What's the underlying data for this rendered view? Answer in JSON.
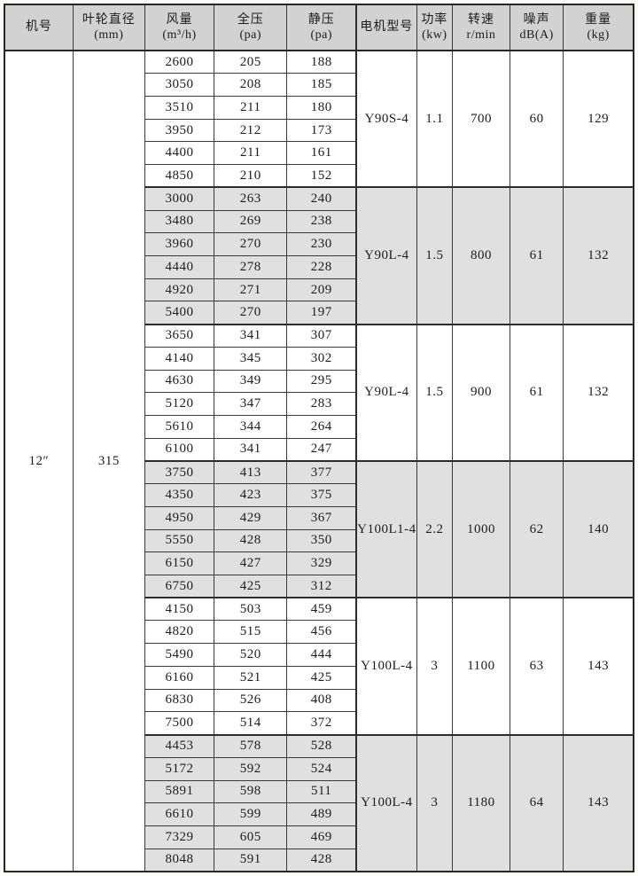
{
  "colors": {
    "header_bg": "#d2d2d2",
    "shaded_block_bg": "#e0e0e0",
    "border": "#2c2c2c",
    "page_bg": "#fbfbf9"
  },
  "table": {
    "headers": [
      {
        "line1": "机号",
        "line2": ""
      },
      {
        "line1": "叶轮直径",
        "line2": "(mm)"
      },
      {
        "line1": "风量",
        "line2": "(m³/h)"
      },
      {
        "line1": "全压",
        "line2": "(pa)"
      },
      {
        "line1": "静压",
        "line2": "(pa)"
      },
      {
        "line1": "电机型号",
        "line2": ""
      },
      {
        "line1": "功率",
        "line2": "(kw)"
      },
      {
        "line1": "转速",
        "line2": "r/min"
      },
      {
        "line1": "噪声",
        "line2": "dB(A)"
      },
      {
        "line1": "重量",
        "line2": "(kg)"
      }
    ],
    "machine_no": "12″",
    "impeller_diameter": "315",
    "blocks": [
      {
        "shaded": false,
        "rows": [
          [
            "2600",
            "205",
            "188"
          ],
          [
            "3050",
            "208",
            "185"
          ],
          [
            "3510",
            "211",
            "180"
          ],
          [
            "3950",
            "212",
            "173"
          ],
          [
            "4400",
            "211",
            "161"
          ],
          [
            "4850",
            "210",
            "152"
          ]
        ],
        "motor_model": "Y90S-4",
        "power": "1.1",
        "speed": "700",
        "noise": "60",
        "weight": "129"
      },
      {
        "shaded": true,
        "rows": [
          [
            "3000",
            "263",
            "240"
          ],
          [
            "3480",
            "269",
            "238"
          ],
          [
            "3960",
            "270",
            "230"
          ],
          [
            "4440",
            "278",
            "228"
          ],
          [
            "4920",
            "271",
            "209"
          ],
          [
            "5400",
            "270",
            "197"
          ]
        ],
        "motor_model": "Y90L-4",
        "power": "1.5",
        "speed": "800",
        "noise": "61",
        "weight": "132"
      },
      {
        "shaded": false,
        "rows": [
          [
            "3650",
            "341",
            "307"
          ],
          [
            "4140",
            "345",
            "302"
          ],
          [
            "4630",
            "349",
            "295"
          ],
          [
            "5120",
            "347",
            "283"
          ],
          [
            "5610",
            "344",
            "264"
          ],
          [
            "6100",
            "341",
            "247"
          ]
        ],
        "motor_model": "Y90L-4",
        "power": "1.5",
        "speed": "900",
        "noise": "61",
        "weight": "132"
      },
      {
        "shaded": true,
        "rows": [
          [
            "3750",
            "413",
            "377"
          ],
          [
            "4350",
            "423",
            "375"
          ],
          [
            "4950",
            "429",
            "367"
          ],
          [
            "5550",
            "428",
            "350"
          ],
          [
            "6150",
            "427",
            "329"
          ],
          [
            "6750",
            "425",
            "312"
          ]
        ],
        "motor_model": "Y100L1-4",
        "power": "2.2",
        "speed": "1000",
        "noise": "62",
        "weight": "140"
      },
      {
        "shaded": false,
        "rows": [
          [
            "4150",
            "503",
            "459"
          ],
          [
            "4820",
            "515",
            "456"
          ],
          [
            "5490",
            "520",
            "444"
          ],
          [
            "6160",
            "521",
            "425"
          ],
          [
            "6830",
            "526",
            "408"
          ],
          [
            "7500",
            "514",
            "372"
          ]
        ],
        "motor_model": "Y100L-4",
        "power": "3",
        "speed": "1100",
        "noise": "63",
        "weight": "143"
      },
      {
        "shaded": true,
        "rows": [
          [
            "4453",
            "578",
            "528"
          ],
          [
            "5172",
            "592",
            "524"
          ],
          [
            "5891",
            "598",
            "511"
          ],
          [
            "6610",
            "599",
            "489"
          ],
          [
            "7329",
            "605",
            "469"
          ],
          [
            "8048",
            "591",
            "428"
          ]
        ],
        "motor_model": "Y100L-4",
        "power": "3",
        "speed": "1180",
        "noise": "64",
        "weight": "143"
      }
    ]
  }
}
